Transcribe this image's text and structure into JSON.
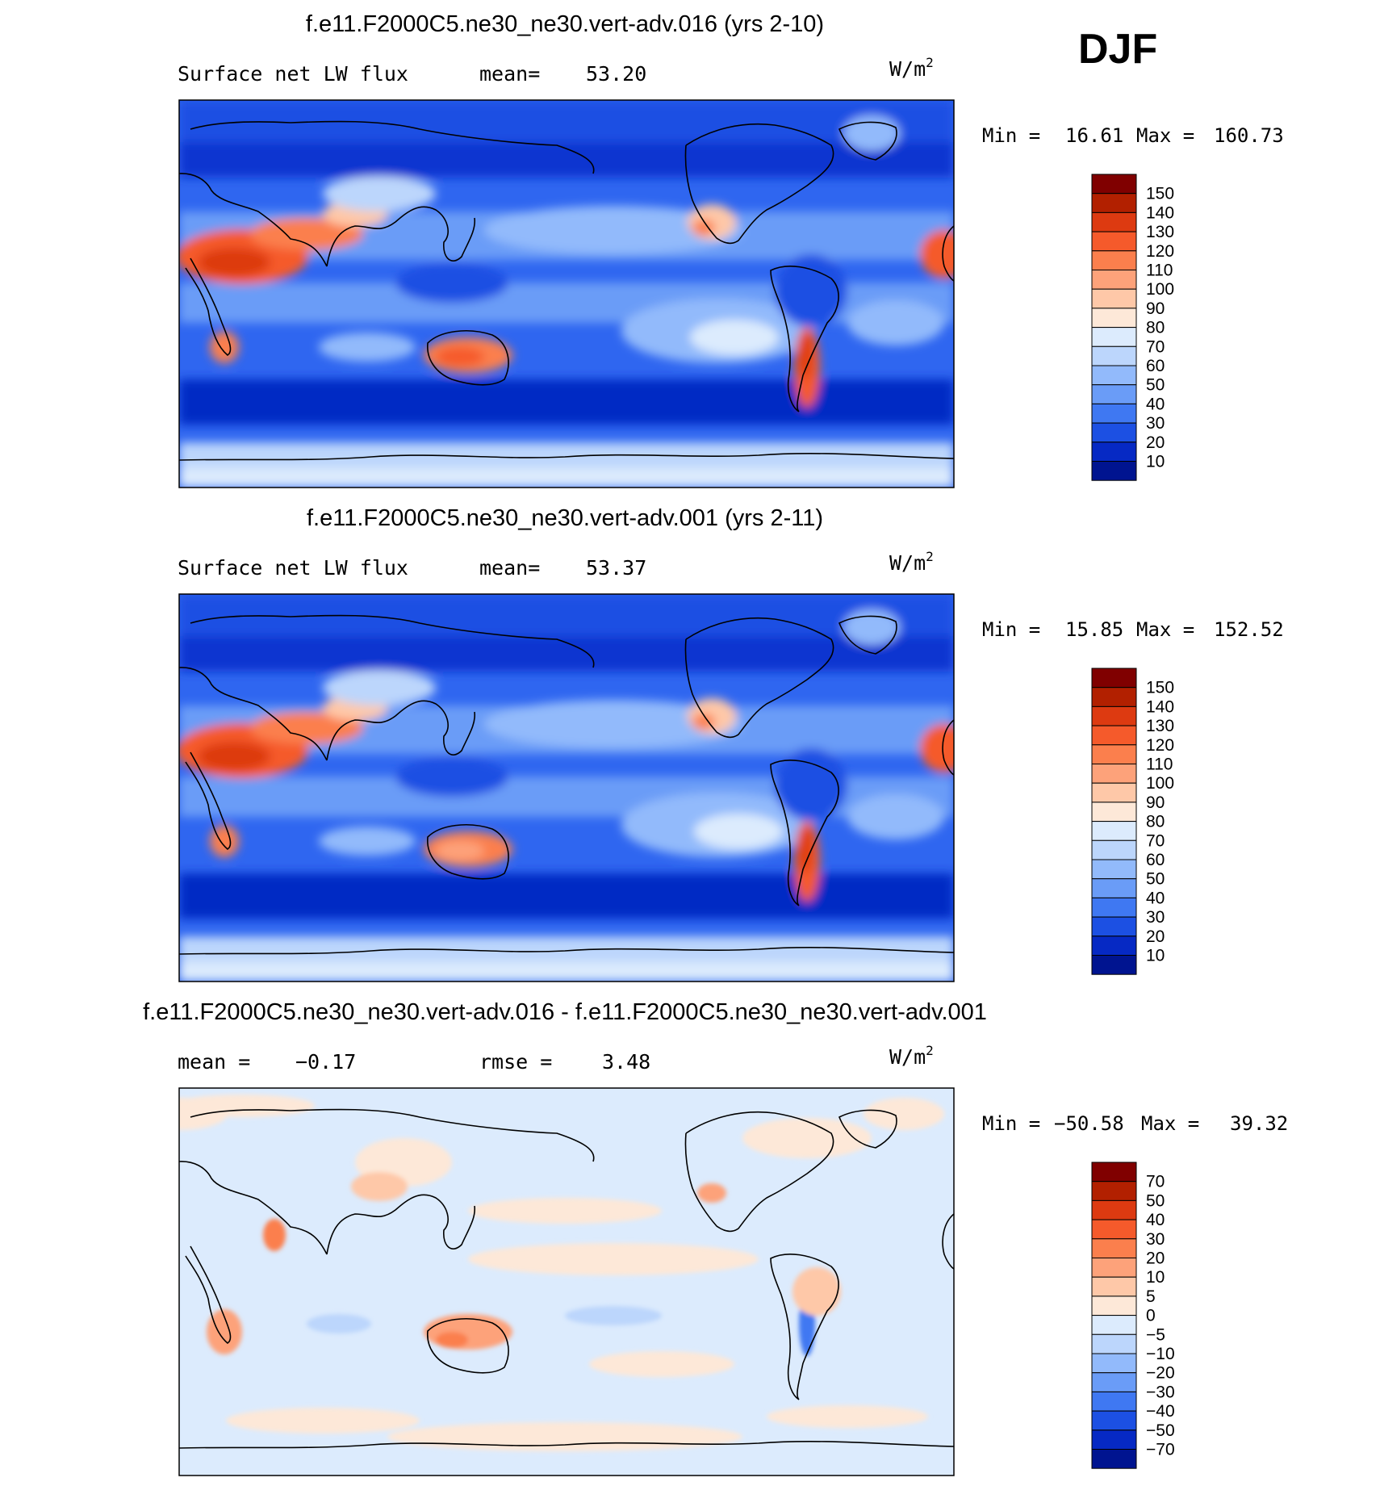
{
  "season": "DJF",
  "colors": {
    "ocean_deep": "#0a33d6",
    "ocean_mid": "#2f66f0",
    "ocean_light": "#6b9cf7",
    "pale_blue": "#d7e8fc",
    "pale_peach": "#fde1cc",
    "land_warm": "#f07a4e",
    "land_hot": "#e3542c",
    "coast": "#000000"
  },
  "chart_data": [
    {
      "type": "heatmap",
      "id": "panel1",
      "title": "f.e11.F2000C5.ne30_ne30.vert-adv.016 (yrs 2-10)",
      "variable": "Surface net LW flux",
      "stat_left": "mean=",
      "stat_left_value": "53.20",
      "units": "W/m",
      "units_sup": "2",
      "min_label": "Min =",
      "min_value": "16.61",
      "max_label": "Max =",
      "max_value": "160.73",
      "colorbar_levels": [
        "150",
        "140",
        "130",
        "120",
        "110",
        "100",
        "90",
        "80",
        "70",
        "60",
        "50",
        "40",
        "30",
        "20",
        "10"
      ],
      "colorbar_colors": [
        "#800000",
        "#b22000",
        "#dd3a11",
        "#f55a2b",
        "#fb7f4d",
        "#fda27a",
        "#fec8a8",
        "#fde8d8",
        "#dcebfd",
        "#bcd6fc",
        "#92bafb",
        "#6a9cf7",
        "#3f78f2",
        "#1c50e3",
        "#0629c4",
        "#001490"
      ]
    },
    {
      "type": "heatmap",
      "id": "panel2",
      "title": "f.e11.F2000C5.ne30_ne30.vert-adv.001 (yrs 2-11)",
      "variable": "Surface net LW flux",
      "stat_left": "mean=",
      "stat_left_value": "53.37",
      "units": "W/m",
      "units_sup": "2",
      "min_label": "Min =",
      "min_value": "15.85",
      "max_label": "Max =",
      "max_value": "152.52",
      "colorbar_levels": [
        "150",
        "140",
        "130",
        "120",
        "110",
        "100",
        "90",
        "80",
        "70",
        "60",
        "50",
        "40",
        "30",
        "20",
        "10"
      ],
      "colorbar_colors": [
        "#800000",
        "#b22000",
        "#dd3a11",
        "#f55a2b",
        "#fb7f4d",
        "#fda27a",
        "#fec8a8",
        "#fde8d8",
        "#dcebfd",
        "#bcd6fc",
        "#92bafb",
        "#6a9cf7",
        "#3f78f2",
        "#1c50e3",
        "#0629c4",
        "#001490"
      ]
    },
    {
      "type": "heatmap",
      "id": "panel3",
      "title": "f.e11.F2000C5.ne30_ne30.vert-adv.016 - f.e11.F2000C5.ne30_ne30.vert-adv.001",
      "stat_left": "mean =",
      "stat_left_value": "−0.17",
      "stat_right": "rmse =",
      "stat_right_value": "3.48",
      "units": "W/m",
      "units_sup": "2",
      "min_label": "Min =",
      "min_value": "−50.58",
      "max_label": "Max =",
      "max_value": "39.32",
      "colorbar_levels": [
        "70",
        "50",
        "40",
        "30",
        "20",
        "10",
        "5",
        "0",
        "−5",
        "−10",
        "−20",
        "−30",
        "−40",
        "−50",
        "−70"
      ],
      "colorbar_colors": [
        "#800000",
        "#b22000",
        "#dd3a11",
        "#f55a2b",
        "#fb7f4d",
        "#fda27a",
        "#fec8a8",
        "#fde8d8",
        "#dcebfd",
        "#bcd6fc",
        "#92bafb",
        "#6a9cf7",
        "#3f78f2",
        "#1c50e3",
        "#0629c4",
        "#001490"
      ]
    }
  ]
}
